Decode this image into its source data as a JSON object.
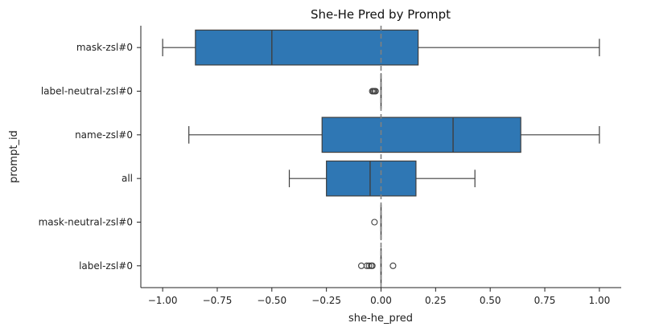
{
  "chart_data": {
    "type": "box",
    "orientation": "horizontal",
    "title": "She-He Pred by Prompt",
    "xlabel": "she-he_pred",
    "ylabel": "prompt_id",
    "xlim": [
      -1.1,
      1.1
    ],
    "xticks": [
      -1.0,
      -0.75,
      -0.5,
      -0.25,
      0.0,
      0.25,
      0.5,
      0.75,
      1.0
    ],
    "xtick_labels": [
      "−1.00",
      "−0.75",
      "−0.50",
      "−0.25",
      "0.00",
      "0.25",
      "0.50",
      "0.75",
      "1.00"
    ],
    "reference_line": {
      "x": 0,
      "style": "dashed",
      "color": "#808080"
    },
    "box_color": "#2f77b4",
    "line_color": "#3f3f3f",
    "categories": [
      "mask-zsl#0",
      "label-neutral-zsl#0",
      "name-zsl#0",
      "all",
      "mask-neutral-zsl#0",
      "label-zsl#0"
    ],
    "boxes": [
      {
        "category": "mask-zsl#0",
        "whisker_low": -1.0,
        "q1": -0.85,
        "median": -0.5,
        "q3": 0.17,
        "whisker_high": 1.0,
        "outliers": []
      },
      {
        "category": "label-neutral-zsl#0",
        "whisker_low": 0.0,
        "q1": 0.0,
        "median": 0.0,
        "q3": 0.0,
        "whisker_high": 0.0,
        "outliers": [
          -0.04,
          -0.035,
          -0.03,
          -0.025
        ]
      },
      {
        "category": "name-zsl#0",
        "whisker_low": -0.88,
        "q1": -0.27,
        "median": 0.33,
        "q3": 0.64,
        "whisker_high": 1.0,
        "outliers": []
      },
      {
        "category": "all",
        "whisker_low": -0.42,
        "q1": -0.25,
        "median": -0.05,
        "q3": 0.16,
        "whisker_high": 0.43,
        "outliers": []
      },
      {
        "category": "mask-neutral-zsl#0",
        "whisker_low": 0.0,
        "q1": 0.0,
        "median": 0.0,
        "q3": 0.0,
        "whisker_high": 0.0,
        "outliers": [
          -0.03
        ]
      },
      {
        "category": "label-zsl#0",
        "whisker_low": 0.0,
        "q1": 0.0,
        "median": 0.0,
        "q3": 0.0,
        "whisker_high": 0.0,
        "outliers": [
          -0.09,
          -0.065,
          -0.055,
          -0.045,
          -0.04,
          0.055
        ]
      }
    ],
    "grid": false,
    "legend": "none"
  }
}
